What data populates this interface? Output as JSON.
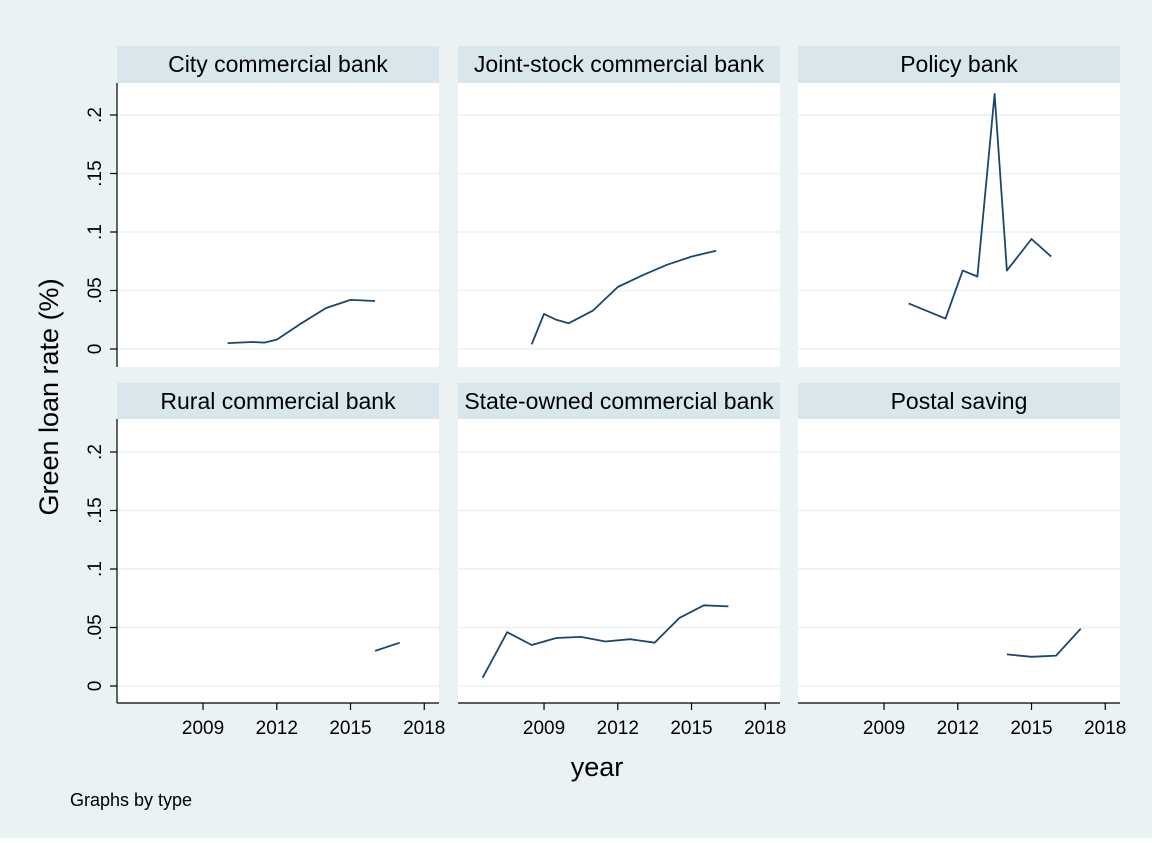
{
  "chart_data": {
    "type": "line",
    "ylabel": "Green loan rate (%)",
    "xlabel": "year",
    "note": "Graphs by type",
    "xlim": [
      2005.5,
      2018.6
    ],
    "ylim": [
      0,
      0.2
    ],
    "x_ticks": [
      2009,
      2012,
      2015,
      2018
    ],
    "y_ticks": [
      0,
      0.05,
      0.1,
      0.15,
      0.2
    ],
    "y_tick_labels": [
      "0",
      ".05",
      ".1",
      ".15",
      ".2"
    ],
    "grid": true,
    "line_color": "#1a476f",
    "panels": [
      {
        "title": "City commercial bank",
        "x": [
          2010,
          2011,
          2011.5,
          2012,
          2013,
          2014,
          2015,
          2016
        ],
        "y": [
          0.005,
          0.006,
          0.0055,
          0.008,
          0.022,
          0.035,
          0.042,
          0.041
        ]
      },
      {
        "title": "Joint-stock commercial bank",
        "x": [
          2008.5,
          2009,
          2009.5,
          2010,
          2011,
          2012,
          2013,
          2014,
          2015,
          2016
        ],
        "y": [
          0.004,
          0.03,
          0.025,
          0.022,
          0.033,
          0.053,
          0.063,
          0.072,
          0.079,
          0.084
        ]
      },
      {
        "title": "Policy bank",
        "x": [
          2010,
          2011.5,
          2012.2,
          2012.8,
          2013.5,
          2014,
          2015,
          2015.8
        ],
        "y": [
          0.039,
          0.026,
          0.067,
          0.062,
          0.218,
          0.067,
          0.094,
          0.079
        ]
      },
      {
        "title": "Rural commercial bank",
        "x": [
          2016,
          2017
        ],
        "y": [
          0.03,
          0.037
        ]
      },
      {
        "title": "State-owned commercial bank",
        "x": [
          2006.5,
          2007.5,
          2008.5,
          2009.5,
          2010.5,
          2011.5,
          2012.5,
          2013.5,
          2014.5,
          2015.5,
          2016.5
        ],
        "y": [
          0.007,
          0.046,
          0.035,
          0.041,
          0.042,
          0.038,
          0.04,
          0.037,
          0.058,
          0.069,
          0.068
        ]
      },
      {
        "title": "Postal saving",
        "x": [
          2014,
          2015,
          2016,
          2017
        ],
        "y": [
          0.027,
          0.025,
          0.026,
          0.049
        ]
      }
    ]
  }
}
